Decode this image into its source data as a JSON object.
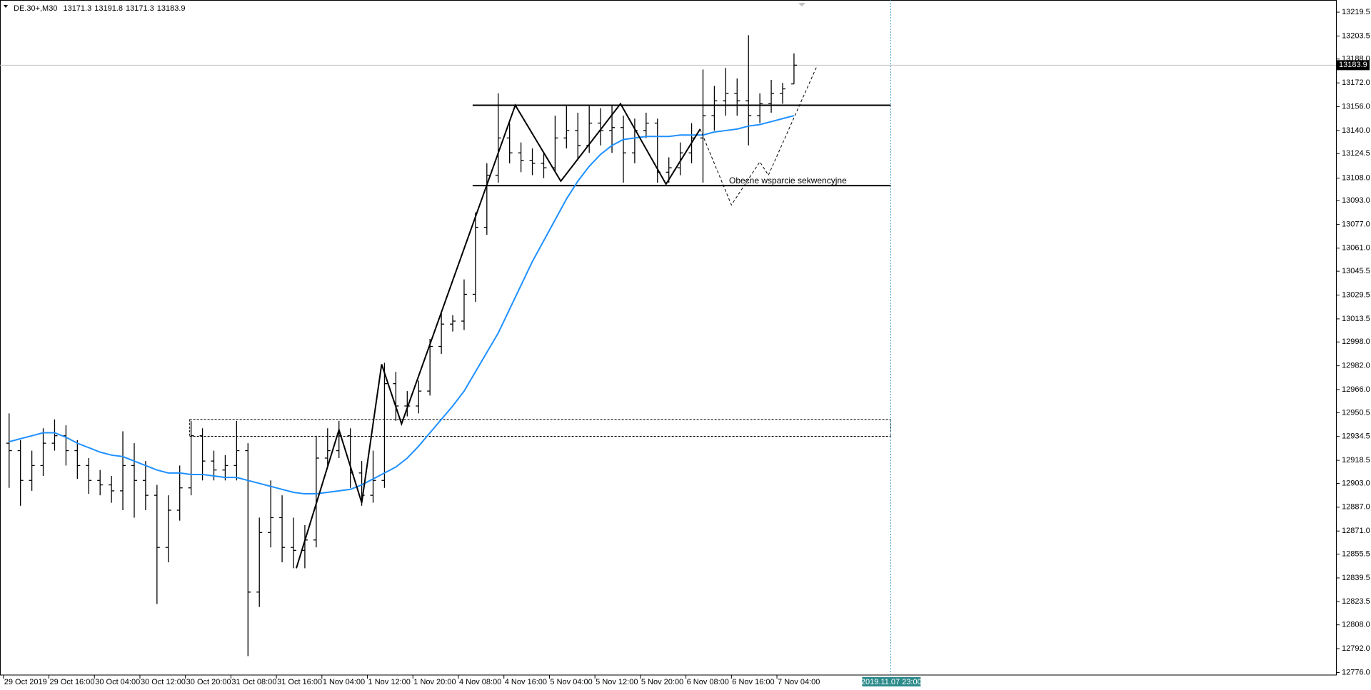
{
  "chart_data": {
    "type": "ohlc",
    "title": "DE.30+,M30",
    "header_values": [
      13171.3,
      13191.8,
      13171.3,
      13183.9
    ],
    "color": "#000000",
    "xlim": [
      -1.2,
      468.6
    ],
    "ylim": [
      12774.3,
      13224.8
    ],
    "yticks": [
      13219.5,
      13203.5,
      {
        "value": 13188,
        "label": "13188.0"
      },
      {
        "value": 13172,
        "label": "13172.0"
      },
      {
        "value": 13156,
        "label": "13156.0"
      },
      {
        "value": 13140,
        "label": "13140.0"
      },
      13124.5,
      {
        "value": 13108,
        "label": "13108.0"
      },
      {
        "value": 13093,
        "label": "13093.0"
      },
      {
        "value": 13077,
        "label": "13077.0"
      },
      {
        "value": 13061,
        "label": "13061.0"
      },
      13045.5,
      13029.5,
      13013.5,
      {
        "value": 12998,
        "label": "12998.0"
      },
      {
        "value": 12982,
        "label": "12982.0"
      },
      {
        "value": 12966,
        "label": "12966.0"
      },
      12950.5,
      12934.5,
      12918.5,
      {
        "value": 12903,
        "label": "12903.0"
      },
      {
        "value": 12887,
        "label": "12887.0"
      },
      {
        "value": 12871,
        "label": "12871.0"
      },
      12855.5,
      12839.5,
      12823.5,
      {
        "value": 12808,
        "label": "12808.0"
      },
      {
        "value": 12792,
        "label": "12792.0"
      },
      {
        "value": 12776,
        "label": "12776.0"
      }
    ],
    "xticks": [
      {
        "value": 0,
        "label": "29 Oct 2019"
      },
      {
        "value": 16,
        "label": "29 Oct 16:00"
      },
      {
        "value": 32,
        "label": "30 Oct 04:00"
      },
      {
        "value": 48,
        "label": "30 Oct 12:00"
      },
      {
        "value": 64,
        "label": "30 Oct 20:00"
      },
      {
        "value": 80,
        "label": "31 Oct 08:00"
      },
      {
        "value": 96,
        "label": "31 Oct 16:00"
      },
      {
        "value": 112,
        "label": "1 Nov 04:00"
      },
      {
        "value": 128,
        "label": "1 Nov 12:00"
      },
      {
        "value": 144,
        "label": "1 Nov 20:00"
      },
      {
        "value": 160,
        "label": "4 Nov 08:00"
      },
      {
        "value": 176,
        "label": "4 Nov 16:00"
      },
      {
        "value": 192,
        "label": "5 Nov 04:00"
      },
      {
        "value": 208,
        "label": "5 Nov 12:00"
      },
      {
        "value": 224,
        "label": "5 Nov 20:00"
      },
      {
        "value": 240,
        "label": "6 Nov 08:00"
      },
      {
        "value": 256,
        "label": "6 Nov 16:00"
      },
      {
        "value": 272,
        "label": "7 Nov 04:00"
      }
    ],
    "x": [
      2,
      6,
      10,
      14,
      18,
      22,
      26,
      30,
      34,
      38,
      42,
      46,
      50,
      54,
      58,
      62,
      66,
      70,
      74,
      78,
      82,
      86,
      90,
      94,
      98,
      102,
      106,
      110,
      114,
      118,
      122,
      126,
      130,
      134,
      138,
      142,
      146,
      150,
      154,
      158,
      162,
      166,
      170,
      174,
      178,
      182,
      186,
      190,
      194,
      198,
      202,
      206,
      210,
      214,
      218,
      222,
      226,
      230,
      234,
      238,
      242,
      246,
      250,
      254,
      258,
      262,
      266,
      270,
      274,
      278
    ],
    "open": [
      12930,
      12925,
      12905,
      12915,
      12930,
      12935,
      12925,
      12915,
      12905,
      12902,
      12898,
      12915,
      12905,
      12895,
      12860,
      12885,
      12900,
      12935,
      12918,
      12912,
      12915,
      12925,
      12830,
      12870,
      12880,
      12860,
      12858,
      12865,
      12920,
      12925,
      12935,
      12910,
      12895,
      12905,
      12970,
      12955,
      12955,
      12965,
      12995,
      13010,
      13012,
      13030,
      13075,
      13110,
      13135,
      13125,
      13120,
      13118,
      13115,
      13135,
      13140,
      13130,
      13145,
      13140,
      13142,
      13125,
      13140,
      13145,
      13112,
      13115,
      13125,
      13135,
      13150,
      13160,
      13165,
      13160,
      13150,
      13158,
      13165,
      13171.3
    ],
    "high": [
      12950,
      12932,
      12925,
      12940,
      12946,
      12942,
      12932,
      12920,
      12912,
      12908,
      12938,
      12930,
      12918,
      12902,
      12895,
      12915,
      12945,
      12940,
      12925,
      12922,
      12945,
      12930,
      12880,
      12905,
      12895,
      12880,
      12875,
      12935,
      12940,
      12945,
      12940,
      12918,
      12925,
      12984,
      12978,
      12965,
      12972,
      13000,
      13018,
      13016,
      13040,
      13085,
      13118,
      13165,
      13145,
      13132,
      13128,
      13125,
      13150,
      13157,
      13152,
      13157,
      13155,
      13157,
      13150,
      13148,
      13152,
      13148,
      13122,
      13132,
      13145,
      13181,
      13170,
      13182,
      13175,
      13204,
      13165,
      13174,
      13172,
      13191.8
    ],
    "low": [
      12900,
      12888,
      12898,
      12908,
      12925,
      12915,
      12906,
      12896,
      12895,
      12890,
      12885,
      12880,
      12885,
      12822,
      12850,
      12878,
      12895,
      12905,
      12905,
      12905,
      12905,
      12787,
      12820,
      12860,
      12850,
      12846,
      12846,
      12860,
      12915,
      12920,
      12900,
      12888,
      12890,
      12900,
      12945,
      12948,
      12950,
      12962,
      12990,
      13005,
      13006,
      13025,
      13070,
      13105,
      13118,
      13112,
      13110,
      13108,
      13112,
      13128,
      13120,
      13125,
      13130,
      13125,
      13105,
      13118,
      13135,
      13105,
      13105,
      13110,
      13118,
      13105,
      13140,
      13150,
      13150,
      13130,
      13145,
      13152,
      13158,
      13171.3
    ],
    "close": [
      12925,
      12905,
      12915,
      12930,
      12935,
      12925,
      12915,
      12905,
      12902,
      12898,
      12915,
      12905,
      12895,
      12860,
      12885,
      12900,
      12935,
      12918,
      12912,
      12915,
      12925,
      12830,
      12870,
      12880,
      12860,
      12858,
      12865,
      12920,
      12925,
      12935,
      12910,
      12895,
      12905,
      12970,
      12955,
      12955,
      12965,
      12995,
      13010,
      13012,
      13030,
      13075,
      13110,
      13135,
      13125,
      13120,
      13118,
      13115,
      13135,
      13140,
      13130,
      13145,
      13140,
      13142,
      13125,
      13140,
      13145,
      13112,
      13115,
      13125,
      13135,
      13150,
      13160,
      13165,
      13160,
      13150,
      13158,
      13165,
      13168,
      13183.9
    ],
    "moving_average": {
      "color": "#1e90ff",
      "values": [
        12931,
        12933,
        12935,
        12937,
        12937,
        12934,
        12930,
        12927,
        12924,
        12922,
        12921,
        12918,
        12915,
        12912,
        12910,
        12910,
        12909,
        12909,
        12908,
        12907,
        12907,
        12905,
        12903,
        12901,
        12899,
        12897,
        12896,
        12896,
        12897,
        12898,
        12899,
        12902,
        12906,
        12910,
        12914,
        12920,
        12928,
        12937,
        12946,
        12955,
        12965,
        12978,
        12991,
        13004,
        13020,
        13036,
        13052,
        13066,
        13080,
        13094,
        13106,
        13116,
        13124,
        13130,
        13134,
        13135,
        13136,
        13136,
        13136,
        13137,
        13137,
        13137,
        13139,
        13140,
        13141,
        13143,
        13144,
        13146,
        13148,
        13150
      ]
    },
    "current_price": 13183.9,
    "levels": [
      {
        "value": 13157,
        "x_range": [
          165,
          312
        ]
      },
      {
        "value": 13103,
        "x_range": [
          165,
          312
        ]
      }
    ],
    "zone": {
      "values": [
        12946,
        12934.6
      ],
      "x_range": [
        65.5,
        312
      ]
    },
    "zigzag": {
      "x": [
        103,
        118,
        126,
        133,
        140,
        180,
        196,
        217,
        233,
        245
      ],
      "values": [
        12846,
        12939,
        12890,
        12983,
        12943,
        13157,
        13106,
        13158,
        13104,
        13141
      ]
    },
    "projection": {
      "x": [
        245,
        256,
        266,
        269,
        286
      ],
      "values": [
        13141,
        13090,
        13119,
        13110,
        13183
      ]
    },
    "annotation": "Obecne wsparcie sekwencyjne",
    "cursor": {
      "x": 312,
      "label": "2019.11.07 23:00"
    }
  }
}
